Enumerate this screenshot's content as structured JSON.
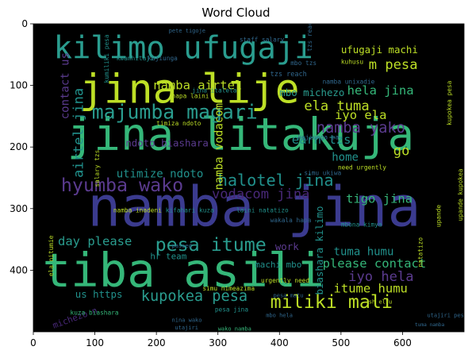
{
  "chart_data": {
    "type": "wordcloud",
    "title": "Word Cloud",
    "xlabel": "",
    "ylabel": "",
    "xlim": [
      0,
      700
    ],
    "ylim": [
      500,
      0
    ],
    "xticks": [
      0,
      100,
      200,
      300,
      400,
      500,
      600
    ],
    "yticks": [
      0,
      100,
      200,
      300,
      400
    ],
    "grid": false,
    "background": "#000000",
    "palette": [
      "#440154",
      "#3b528b",
      "#21918c",
      "#5ec962",
      "#bddf26",
      "#fde725",
      "#30678d",
      "#35b779"
    ],
    "words": [
      {
        "text": "kilimo ufugaji",
        "x": 33,
        "y": 20,
        "size": 50,
        "rotate": 0,
        "color": "#2a9d8f"
      },
      {
        "text": "jina lije",
        "x": 75,
        "y": 80,
        "size": 66,
        "rotate": 0,
        "color": "#bddf26"
      },
      {
        "text": "jina litakuja",
        "x": 55,
        "y": 152,
        "size": 72,
        "rotate": 0,
        "color": "#35b779"
      },
      {
        "text": "namba jina",
        "x": 88,
        "y": 262,
        "size": 90,
        "rotate": 0,
        "color": "#3b3b8f"
      },
      {
        "text": "tiba asili",
        "x": 15,
        "y": 370,
        "size": 76,
        "rotate": 0,
        "color": "#35b779"
      },
      {
        "text": "majumba magari",
        "x": 95,
        "y": 130,
        "size": 32,
        "rotate": 0,
        "color": "#2a9d8f"
      },
      {
        "text": "namba airtel",
        "x": 195,
        "y": 92,
        "size": 20,
        "rotate": 0,
        "color": "#bddf26"
      },
      {
        "text": "halotel jina",
        "x": 300,
        "y": 243,
        "size": 26,
        "rotate": 0,
        "color": "#21918c"
      },
      {
        "text": "hyumba wako",
        "x": 45,
        "y": 250,
        "size": 30,
        "rotate": 0,
        "color": "#5b3b8f"
      },
      {
        "text": "vodacom jina",
        "x": 290,
        "y": 268,
        "size": 22,
        "rotate": 0,
        "color": "#482878"
      },
      {
        "text": "pesa itume",
        "x": 198,
        "y": 347,
        "size": 30,
        "rotate": 0,
        "color": "#2a9d8f"
      },
      {
        "text": "kupokea pesa",
        "x": 175,
        "y": 433,
        "size": 24,
        "rotate": 0,
        "color": "#2a9d8f"
      },
      {
        "text": "miliki mali",
        "x": 385,
        "y": 440,
        "size": 30,
        "rotate": 0,
        "color": "#bddf26"
      },
      {
        "text": "namba yako",
        "x": 460,
        "y": 160,
        "size": 24,
        "rotate": 0,
        "color": "#5b3b8f"
      },
      {
        "text": "ela tuma",
        "x": 440,
        "y": 125,
        "size": 22,
        "rotate": 0,
        "color": "#bddf26"
      },
      {
        "text": "hela jina",
        "x": 510,
        "y": 100,
        "size": 20,
        "rotate": 0,
        "color": "#35b779"
      },
      {
        "text": "iyo ela",
        "x": 490,
        "y": 140,
        "size": 20,
        "rotate": 0,
        "color": "#bddf26"
      },
      {
        "text": "ufugaji machi",
        "x": 500,
        "y": 35,
        "size": 16,
        "rotate": 0,
        "color": "#bddf26"
      },
      {
        "text": "m pesa",
        "x": 545,
        "y": 58,
        "size": 22,
        "rotate": 0,
        "color": "#bddf26"
      },
      {
        "text": "tigo jina",
        "x": 508,
        "y": 276,
        "size": 20,
        "rotate": 0,
        "color": "#35b779"
      },
      {
        "text": "iyo hela",
        "x": 512,
        "y": 402,
        "size": 22,
        "rotate": 0,
        "color": "#5b3b8f"
      },
      {
        "text": "itume humu",
        "x": 488,
        "y": 422,
        "size": 20,
        "rotate": 0,
        "color": "#bddf26"
      },
      {
        "text": "tuma humu",
        "x": 488,
        "y": 363,
        "size": 18,
        "rotate": 0,
        "color": "#21918c"
      },
      {
        "text": "please contact",
        "x": 470,
        "y": 381,
        "size": 20,
        "rotate": 0,
        "color": "#35b779"
      },
      {
        "text": "earn tzs",
        "x": 420,
        "y": 180,
        "size": 20,
        "rotate": 0,
        "color": "#21918c"
      },
      {
        "text": "mbo michezo",
        "x": 400,
        "y": 105,
        "size": 16,
        "rotate": 0,
        "color": "#2a9d8f"
      },
      {
        "text": "utimize ndoto",
        "x": 135,
        "y": 237,
        "size": 18,
        "rotate": 0,
        "color": "#21918c"
      },
      {
        "text": "ndoto biashara",
        "x": 150,
        "y": 187,
        "size": 16,
        "rotate": 0,
        "color": "#5b3b8f"
      },
      {
        "text": "day please",
        "x": 40,
        "y": 345,
        "size": 20,
        "rotate": 0,
        "color": "#2a9d8f"
      },
      {
        "text": "contact us",
        "x": 45,
        "y": 155,
        "size": 18,
        "rotate": -90,
        "color": "#5b3b8f"
      },
      {
        "text": "airtel jina",
        "x": 65,
        "y": 250,
        "size": 22,
        "rotate": -90,
        "color": "#21918c"
      },
      {
        "text": "namba vodacom",
        "x": 295,
        "y": 270,
        "size": 18,
        "rotate": -90,
        "color": "#bddf26"
      },
      {
        "text": "biashara kilimo",
        "x": 458,
        "y": 440,
        "size": 16,
        "rotate": -90,
        "color": "#21918c"
      },
      {
        "text": "home",
        "x": 485,
        "y": 210,
        "size": 18,
        "rotate": 0,
        "color": "#21918c"
      },
      {
        "text": "go",
        "x": 585,
        "y": 198,
        "size": 22,
        "rotate": 0,
        "color": "#bddf26"
      },
      {
        "text": "work",
        "x": 393,
        "y": 355,
        "size": 16,
        "rotate": 0,
        "color": "#5b3b8f"
      },
      {
        "text": "us https",
        "x": 68,
        "y": 432,
        "size": 16,
        "rotate": 0,
        "color": "#21918c"
      },
      {
        "text": "hr team",
        "x": 190,
        "y": 372,
        "size": 14,
        "rotate": 0,
        "color": "#21918c"
      },
      {
        "text": "machi mbo",
        "x": 360,
        "y": 385,
        "size": 14,
        "rotate": 0,
        "color": "#21918c"
      },
      {
        "text": "michezo n",
        "x": 30,
        "y": 485,
        "size": 14,
        "rotate": -20,
        "color": "#482878"
      },
      {
        "text": "simu ukiwa",
        "x": 440,
        "y": 238,
        "size": 10,
        "rotate": 0,
        "color": "#30678d"
      },
      {
        "text": "namba inadeni",
        "x": 130,
        "y": 299,
        "size": 10,
        "rotate": 0,
        "color": "#bddf26"
      },
      {
        "text": "kifahari kuza",
        "x": 215,
        "y": 299,
        "size": 10,
        "rotate": 0,
        "color": "#21918c"
      },
      {
        "text": "laini natatizo",
        "x": 330,
        "y": 299,
        "size": 10,
        "rotate": 0,
        "color": "#21918c"
      },
      {
        "text": "wakala hapa",
        "x": 385,
        "y": 315,
        "size": 10,
        "rotate": 0,
        "color": "#30678d"
      },
      {
        "text": "kuza biashara",
        "x": 60,
        "y": 465,
        "size": 10,
        "rotate": 0,
        "color": "#35b779"
      },
      {
        "text": "pesa jina",
        "x": 295,
        "y": 460,
        "size": 10,
        "rotate": 0,
        "color": "#21918c"
      },
      {
        "text": "wako namba",
        "x": 300,
        "y": 492,
        "size": 9,
        "rotate": 0,
        "color": "#35b779"
      },
      {
        "text": "staff salary",
        "x": 335,
        "y": 22,
        "size": 10,
        "rotate": 0,
        "color": "#30678d"
      },
      {
        "text": "pete tigoje",
        "x": 220,
        "y": 8,
        "size": 9,
        "rotate": 0,
        "color": "#30678d"
      },
      {
        "text": "kujiunga",
        "x": 186,
        "y": 52,
        "size": 10,
        "rotate": 0,
        "color": "#30678d"
      },
      {
        "text": "kwamhitaji",
        "x": 135,
        "y": 52,
        "size": 10,
        "rotate": 0,
        "color": "#21918c"
      },
      {
        "text": "kuhusu",
        "x": 500,
        "y": 58,
        "size": 10,
        "rotate": 0,
        "color": "#bddf26"
      },
      {
        "text": "tzs reach",
        "x": 445,
        "y": 45,
        "size": 10,
        "rotate": -90,
        "color": "#30678d"
      },
      {
        "text": "mbo tzs",
        "x": 418,
        "y": 60,
        "size": 10,
        "rotate": 0,
        "color": "#30678d"
      },
      {
        "text": "tzs reach",
        "x": 385,
        "y": 78,
        "size": 11,
        "rotate": 0,
        "color": "#30678d"
      },
      {
        "text": "namba unixadie",
        "x": 470,
        "y": 90,
        "size": 10,
        "rotate": 0,
        "color": "#30678d"
      },
      {
        "text": "hapa laini",
        "x": 225,
        "y": 113,
        "size": 10,
        "rotate": 0,
        "color": "#bddf26"
      },
      {
        "text": "jina italeta",
        "x": 258,
        "y": 104,
        "size": 10,
        "rotate": 0,
        "color": "#21918c"
      },
      {
        "text": "timiza ndoto",
        "x": 200,
        "y": 158,
        "size": 10,
        "rotate": 0,
        "color": "#bddf26"
      },
      {
        "text": "kumiliki pesa",
        "x": 115,
        "y": 96,
        "size": 10,
        "rotate": -90,
        "color": "#21918c"
      },
      {
        "text": "mbona kimya",
        "x": 500,
        "y": 322,
        "size": 10,
        "rotate": 0,
        "color": "#21918c"
      },
      {
        "text": "kujiunga pa",
        "x": 430,
        "y": 180,
        "size": 10,
        "rotate": 0,
        "color": "#30678d"
      },
      {
        "text": "urgently need",
        "x": 370,
        "y": 413,
        "size": 10,
        "rotate": 0,
        "color": "#bddf26"
      },
      {
        "text": "need urgently",
        "x": 495,
        "y": 229,
        "size": 10,
        "rotate": 0,
        "color": "#bddf26"
      },
      {
        "text": "pesa matu",
        "x": 390,
        "y": 438,
        "size": 9,
        "rotate": 0,
        "color": "#30678d"
      },
      {
        "text": "ela nitumie",
        "x": 25,
        "y": 410,
        "size": 10,
        "rotate": -90,
        "color": "#bddf26"
      },
      {
        "text": "salary tzs",
        "x": 100,
        "y": 265,
        "size": 10,
        "rotate": -90,
        "color": "#bddf26"
      },
      {
        "text": "simu nimeazima",
        "x": 275,
        "y": 426,
        "size": 10,
        "rotate": 0,
        "color": "#bddf26"
      },
      {
        "text": "kupokea pesa",
        "x": 672,
        "y": 165,
        "size": 10,
        "rotate": -90,
        "color": "#bddf26"
      },
      {
        "text": "upande kupokea",
        "x": 690,
        "y": 320,
        "size": 10,
        "rotate": -90,
        "color": "#bddf26"
      },
      {
        "text": "natatizo",
        "x": 625,
        "y": 395,
        "size": 10,
        "rotate": -90,
        "color": "#bddf26"
      },
      {
        "text": "upande",
        "x": 655,
        "y": 330,
        "size": 10,
        "rotate": -90,
        "color": "#bddf26"
      },
      {
        "text": "utajiri pesa",
        "x": 640,
        "y": 470,
        "size": 9,
        "rotate": 0,
        "color": "#30678d"
      },
      {
        "text": "tuma namba",
        "x": 620,
        "y": 486,
        "size": 8,
        "rotate": 0,
        "color": "#30678d"
      },
      {
        "text": "mbo hela",
        "x": 378,
        "y": 470,
        "size": 9,
        "rotate": 0,
        "color": "#30678d"
      },
      {
        "text": "nina wako",
        "x": 225,
        "y": 478,
        "size": 9,
        "rotate": 0,
        "color": "#30678d"
      },
      {
        "text": "utajiri",
        "x": 230,
        "y": 490,
        "size": 9,
        "rotate": 0,
        "color": "#30678d"
      },
      {
        "text": "sh elfu",
        "x": 545,
        "y": 448,
        "size": 9,
        "rotate": 0,
        "color": "#bddf26"
      },
      {
        "text": "passed",
        "x": 225,
        "y": 357,
        "size": 9,
        "rotate": 0,
        "color": "#30678d"
      }
    ]
  }
}
